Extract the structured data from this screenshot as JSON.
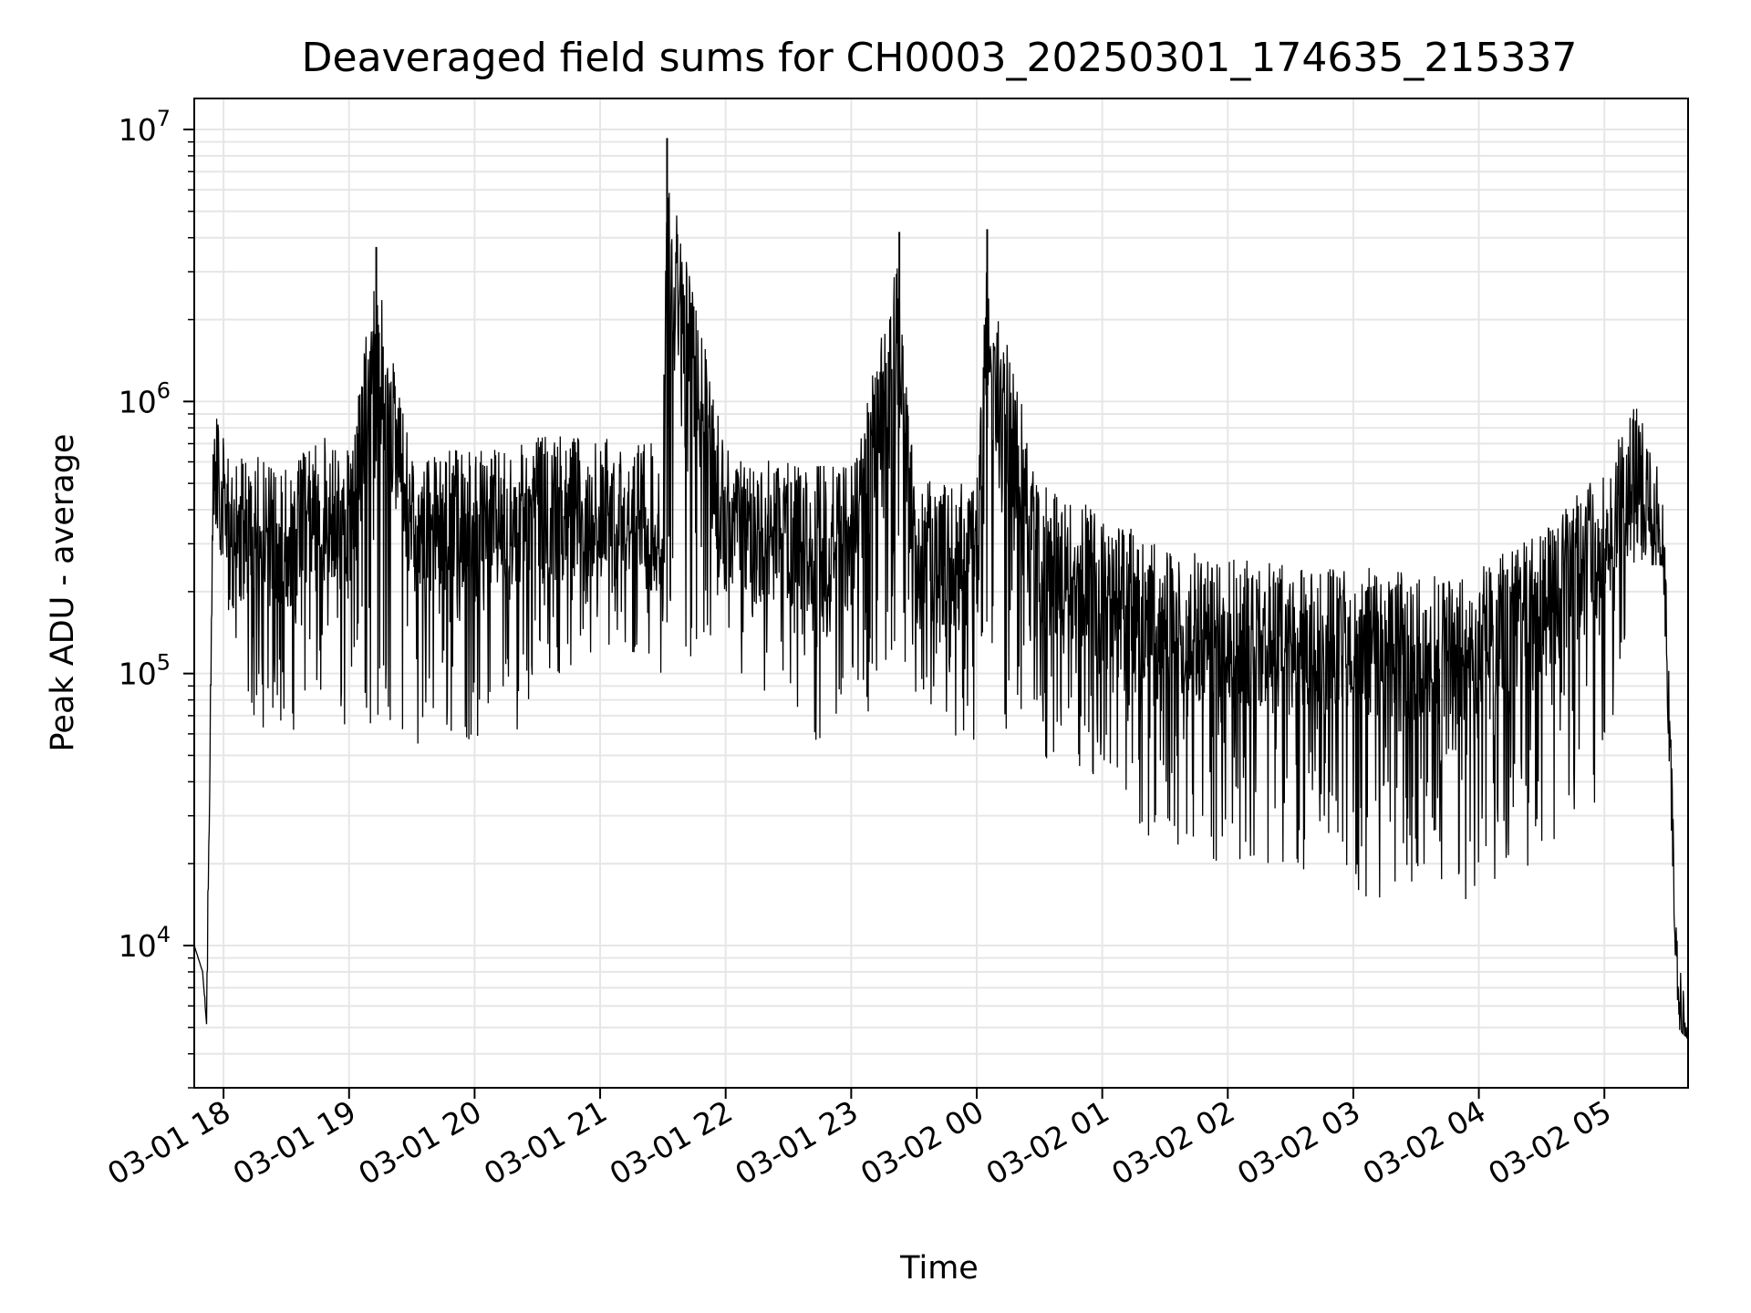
{
  "chart_data": {
    "type": "line",
    "title": "Deaveraged field sums for CH0003_20250301_174635_215337",
    "xlabel": "Time",
    "ylabel": "Peak ADU - average",
    "yscale": "log",
    "ylim": [
      3000,
      13000000
    ],
    "xlim": [
      "03-01 17:46",
      "03-02 05:40"
    ],
    "grid": true,
    "line_color": "#000000",
    "x_ticks": [
      "03-01 18",
      "03-01 19",
      "03-01 20",
      "03-01 21",
      "03-01 22",
      "03-01 23",
      "03-02 00",
      "03-02 01",
      "03-02 02",
      "03-02 03",
      "03-02 04",
      "03-02 05"
    ],
    "y_ticks": [
      {
        "base": "10",
        "exp": "4",
        "value": 10000
      },
      {
        "base": "10",
        "exp": "5",
        "value": 100000
      },
      {
        "base": "10",
        "exp": "6",
        "value": 1000000
      },
      {
        "base": "10",
        "exp": "7",
        "value": 10000000
      }
    ],
    "series": [
      {
        "x": [
          "03-01 17:46",
          "03-01 17:50",
          "03-01 17:52",
          "03-01 17:55",
          "03-01 17:58",
          "03-01 18:05",
          "03-01 18:10",
          "03-01 18:30",
          "03-01 18:48",
          "03-01 19:00",
          "03-01 19:13",
          "03-01 19:30",
          "03-01 20:00",
          "03-01 20:17",
          "03-01 20:30",
          "03-01 21:00",
          "03-01 21:30",
          "03-01 21:32",
          "03-01 22:00",
          "03-01 22:37",
          "03-01 23:00",
          "03-01 23:23",
          "03-01 23:30",
          "03-02 00:00",
          "03-02 00:05",
          "03-02 00:30",
          "03-02 00:55",
          "03-02 01:30",
          "03-02 02:00",
          "03-02 02:30",
          "03-02 02:45",
          "03-02 03:00",
          "03-02 03:30",
          "03-02 03:48",
          "03-02 04:00",
          "03-02 04:30",
          "03-02 05:00",
          "03-02 05:15",
          "03-02 05:28",
          "03-02 05:35",
          "03-02 05:40"
        ],
        "y": [
          10000,
          9000,
          8500,
          1000000,
          1200000,
          700000,
          800000,
          700000,
          900000,
          800000,
          3700000,
          800000,
          800000,
          800000,
          900000,
          900000,
          850000,
          9300000,
          800000,
          700000,
          700000,
          4200000,
          650000,
          600000,
          4300000,
          600000,
          500000,
          350000,
          320000,
          300000,
          300000,
          300000,
          280000,
          280000,
          300000,
          400000,
          700000,
          1200000,
          600000,
          12000,
          6500
        ],
        "y_min": [
          10000,
          8000,
          5000,
          400000,
          300000,
          120000,
          65000,
          60000,
          66000,
          60000,
          60000,
          55000,
          55000,
          50000,
          100000,
          100000,
          100000,
          120000,
          100000,
          42000,
          70000,
          68000,
          80000,
          50000,
          50000,
          50000,
          40000,
          22000,
          20000,
          18000,
          20000,
          15000,
          15000,
          13500,
          16000,
          20000,
          30000,
          250000,
          250000,
          5000,
          4500
        ]
      }
    ]
  }
}
